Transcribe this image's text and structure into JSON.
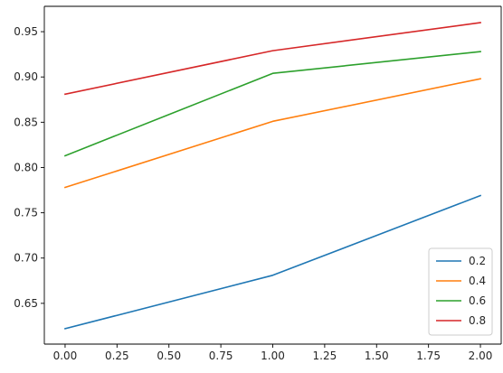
{
  "chart_data": {
    "type": "line",
    "title": "",
    "xlabel": "",
    "ylabel": "",
    "x": [
      0,
      1,
      2
    ],
    "xlim": [
      -0.1,
      2.1
    ],
    "ylim": [
      0.605,
      0.978
    ],
    "xticks": [
      0.0,
      0.25,
      0.5,
      0.75,
      1.0,
      1.25,
      1.5,
      1.75,
      2.0
    ],
    "xtick_labels": [
      "0.00",
      "0.25",
      "0.50",
      "0.75",
      "1.00",
      "1.25",
      "1.50",
      "1.75",
      "2.00"
    ],
    "yticks": [
      0.65,
      0.7,
      0.75,
      0.8,
      0.85,
      0.9,
      0.95
    ],
    "ytick_labels": [
      "0.65",
      "0.70",
      "0.75",
      "0.80",
      "0.85",
      "0.90",
      "0.95"
    ],
    "grid": false,
    "legend_position": "bottom-right",
    "series": [
      {
        "name": "0.2",
        "color": "#1f77b4",
        "values": [
          0.622,
          0.681,
          0.769
        ]
      },
      {
        "name": "0.4",
        "color": "#ff7f0e",
        "values": [
          0.778,
          0.851,
          0.898
        ]
      },
      {
        "name": "0.6",
        "color": "#2ca02c",
        "values": [
          0.813,
          0.904,
          0.928
        ]
      },
      {
        "name": "0.8",
        "color": "#d62728",
        "values": [
          0.881,
          0.929,
          0.96
        ]
      }
    ]
  }
}
